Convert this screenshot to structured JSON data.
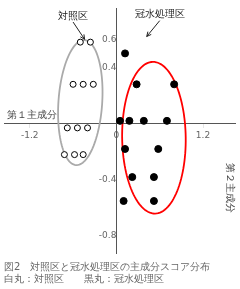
{
  "chart_data": {
    "type": "scatter",
    "title": "図2　対照区と冠水処理区の主成分スコア分布",
    "subtitle": "白丸：対照区　　黒丸：冠水処理区",
    "xlabel": "第１主成分",
    "ylabel": "第２主成分",
    "xlim": [
      -1.55,
      1.65
    ],
    "ylim": [
      -0.92,
      0.82
    ],
    "xticks": [
      -1.2,
      0,
      1.2
    ],
    "yticks": [
      -0.8,
      -0.4,
      0.4,
      0.6
    ],
    "grid": false,
    "series": [
      {
        "marker": "open_circle",
        "color": "#000000",
        "x": [
          -0.5,
          -0.36,
          -0.6,
          -0.46,
          -0.32,
          -0.68,
          -0.54,
          -0.4,
          -0.72,
          -0.58,
          -0.46
        ],
        "y": [
          0.58,
          0.58,
          0.28,
          0.28,
          0.28,
          -0.03,
          -0.03,
          -0.03,
          -0.22,
          -0.22,
          -0.22
        ]
      },
      {
        "marker": "filled_circle",
        "color": "#000000",
        "x": [
          0.12,
          0.28,
          0.8,
          0.05,
          0.18,
          0.38,
          0.7,
          0.12,
          0.58,
          0.22,
          0.52,
          0.1,
          0.52
        ],
        "y": [
          0.5,
          0.28,
          0.28,
          0.02,
          0.02,
          0.02,
          0.02,
          -0.18,
          -0.18,
          -0.38,
          -0.38,
          -0.55,
          -0.55
        ]
      }
    ],
    "ellipses": [
      {
        "cx": -0.5,
        "cy": 0.15,
        "width": 0.6,
        "height": 0.9,
        "angle": -12,
        "color": "#aaaaaa"
      },
      {
        "cx": 0.52,
        "cy": -0.1,
        "width": 0.88,
        "height": 1.08,
        "angle": 4,
        "color": "red"
      }
    ],
    "annotations": [
      {
        "text": "対照区",
        "xy": [
          -0.44,
          0.6
        ],
        "xytext": [
          -0.6,
          0.73
        ]
      },
      {
        "text": "冠水処理区",
        "xy": [
          0.42,
          0.62
        ],
        "xytext": [
          0.6,
          0.74
        ]
      }
    ]
  }
}
